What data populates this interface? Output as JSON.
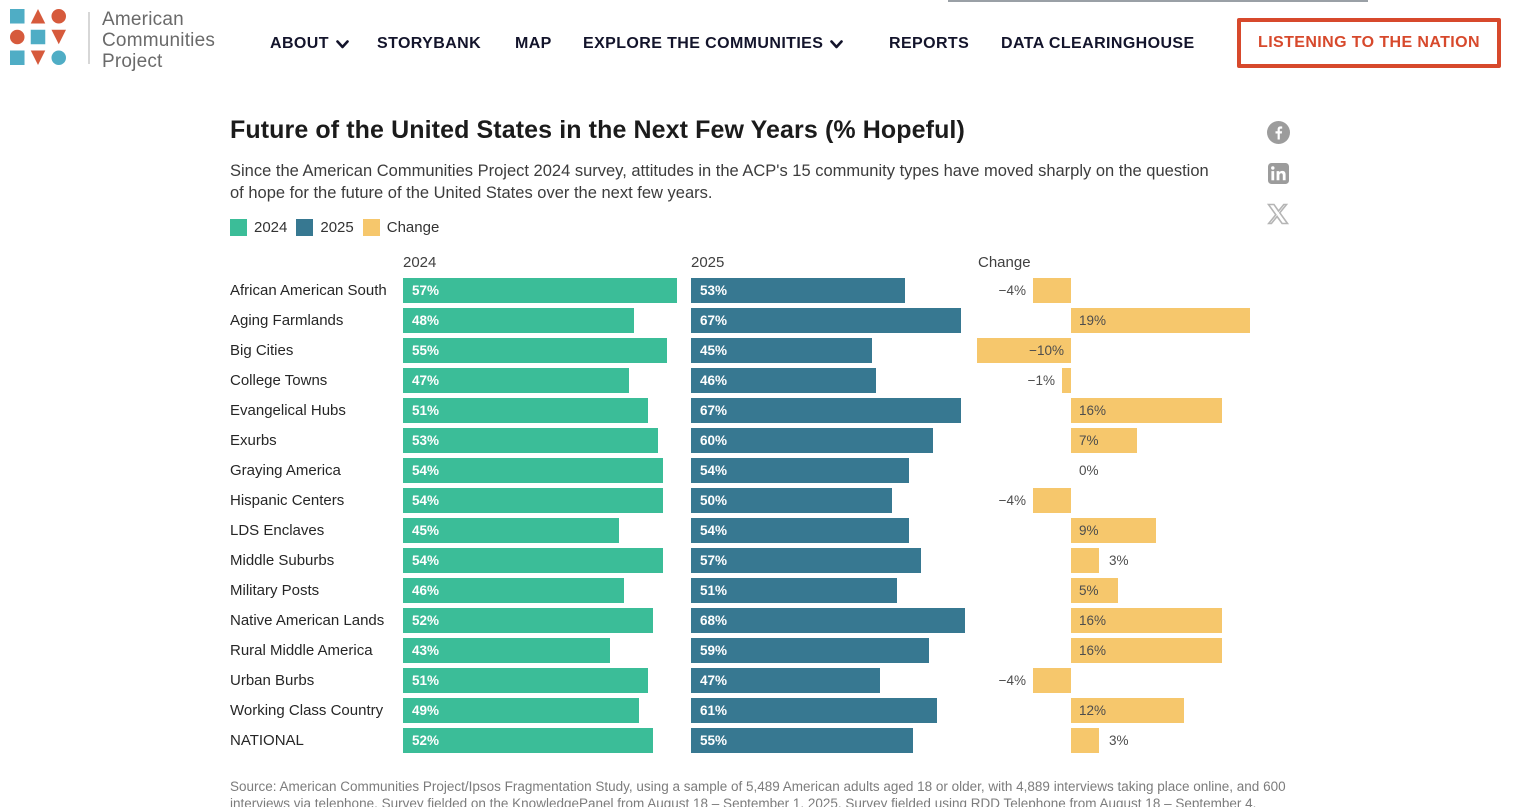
{
  "header": {
    "brand": {
      "line1": "American",
      "line2": "Communities",
      "line3": "Project"
    },
    "nav": [
      {
        "label": "ABOUT",
        "dropdown": true
      },
      {
        "label": "STORYBANK",
        "dropdown": false
      },
      {
        "label": "MAP",
        "dropdown": false
      },
      {
        "label": "EXPLORE THE COMMUNITIES",
        "dropdown": true
      },
      {
        "label": "REPORTS",
        "dropdown": false
      },
      {
        "label": "DATA CLEARINGHOUSE",
        "dropdown": false
      }
    ],
    "cta_label": "LISTENING TO THE NATION"
  },
  "social": {
    "icons": [
      "facebook",
      "linkedin",
      "x"
    ]
  },
  "colors": {
    "green_2024": "#3bbd98",
    "blue_2025": "#377891",
    "yellow_change": "#f6c76c",
    "cta_accent": "#d7492c",
    "logo_orange": "#d65a3c",
    "logo_blue": "#4fadc5"
  },
  "chart_data": {
    "type": "bar",
    "title": "Future of the United States in the Next Few Years (% Hopeful)",
    "subtitle": "Since the American Communities Project 2024 survey, attitudes in the ACP's 15 community types have moved sharply on the question of hope for the future of the United States over the next few years.",
    "legend": [
      {
        "label": "2024",
        "color": "#3bbd98"
      },
      {
        "label": "2025",
        "color": "#377891"
      },
      {
        "label": "Change",
        "color": "#f6c76c"
      }
    ],
    "columns": [
      "2024",
      "2025",
      "Change"
    ],
    "value_suffix": "%",
    "categories": [
      "African American South",
      "Aging Farmlands",
      "Big Cities",
      "College Towns",
      "Evangelical Hubs",
      "Exurbs",
      "Graying America",
      "Hispanic Centers",
      "LDS Enclaves",
      "Middle Suburbs",
      "Military Posts",
      "Native American Lands",
      "Rural Middle America",
      "Urban Burbs",
      "Working Class Country",
      "NATIONAL"
    ],
    "series": [
      {
        "name": "2024",
        "values": [
          57,
          48,
          55,
          47,
          51,
          53,
          54,
          54,
          45,
          54,
          46,
          52,
          43,
          51,
          49,
          52
        ]
      },
      {
        "name": "2025",
        "values": [
          53,
          67,
          45,
          46,
          67,
          60,
          54,
          50,
          54,
          57,
          51,
          68,
          59,
          47,
          61,
          55
        ]
      },
      {
        "name": "Change",
        "values": [
          -4,
          19,
          -10,
          -1,
          16,
          7,
          0,
          -4,
          9,
          3,
          5,
          16,
          16,
          -4,
          12,
          3
        ]
      }
    ],
    "source": "Source: American Communities Project/Ipsos Fragmentation Study, using a sample of 5,489 American adults aged 18 or older, with 4,889 interviews taking place online, and 600 interviews via telephone. Survey fielded on the KnowledgePanel from August 18 – September 1, 2025. Survey fielded using RDD Telephone from August 18 – September 4."
  }
}
